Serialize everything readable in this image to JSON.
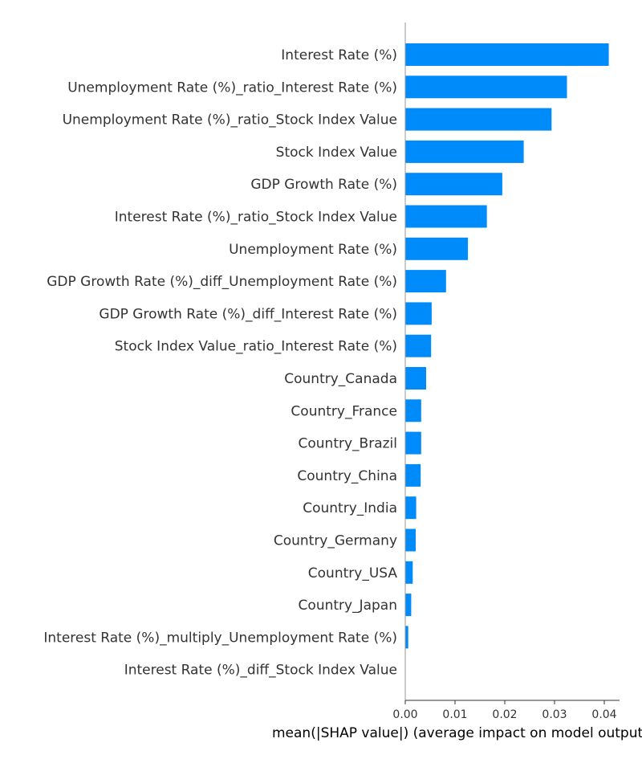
{
  "chart_data": {
    "type": "bar",
    "orientation": "horizontal",
    "categories": [
      "Interest Rate (%)",
      "Unemployment Rate (%)_ratio_Interest Rate (%)",
      "Unemployment Rate (%)_ratio_Stock Index Value",
      "Stock Index Value",
      "GDP Growth Rate (%)",
      "Interest Rate (%)_ratio_Stock Index Value",
      "Unemployment Rate (%)",
      "GDP Growth Rate (%)_diff_Unemployment Rate (%)",
      "GDP Growth Rate (%)_diff_Interest Rate (%)",
      "Stock Index Value_ratio_Interest Rate (%)",
      "Country_Canada",
      "Country_France",
      "Country_Brazil",
      "Country_China",
      "Country_India",
      "Country_Germany",
      "Country_USA",
      "Country_Japan",
      "Interest Rate (%)_multiply_Unemployment Rate (%)",
      "Interest Rate (%)_diff_Stock Index Value"
    ],
    "values": [
      0.0409,
      0.0325,
      0.0294,
      0.0238,
      0.0195,
      0.0164,
      0.0126,
      0.0082,
      0.0053,
      0.0052,
      0.0042,
      0.0032,
      0.0032,
      0.0031,
      0.0022,
      0.0021,
      0.0015,
      0.0012,
      0.0006,
      0.0
    ],
    "xticks": [
      "0.00",
      "0.01",
      "0.02",
      "0.03",
      "0.04"
    ],
    "xtick_values": [
      0.0,
      0.01,
      0.02,
      0.03,
      0.04
    ],
    "xlim": [
      0.0,
      0.043
    ],
    "xlabel": "mean(|SHAP value|) (average impact on model output magnitude)",
    "title": "",
    "grid": false,
    "bar_color": "#008bfb"
  }
}
